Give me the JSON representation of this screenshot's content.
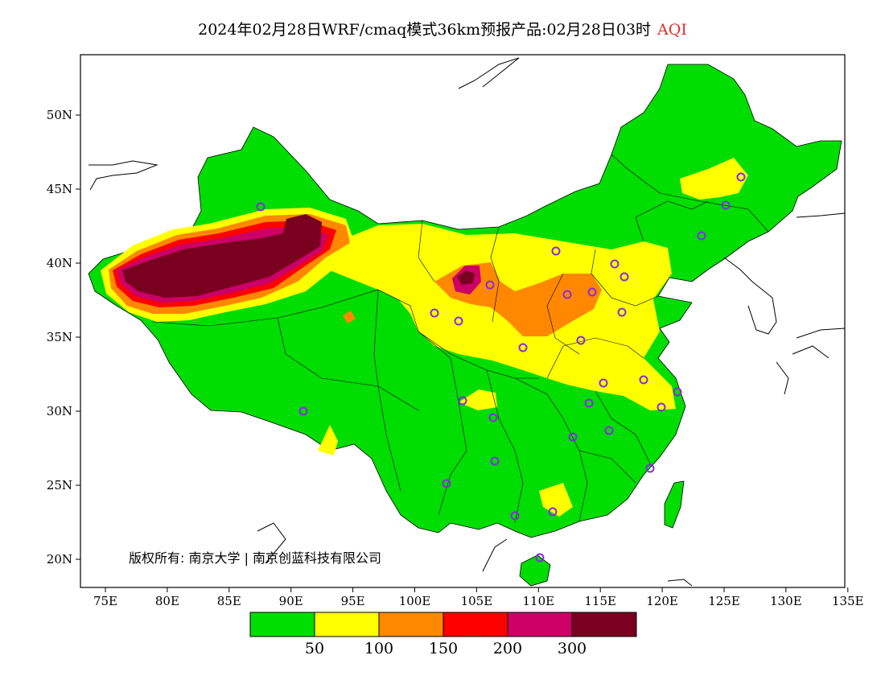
{
  "title": {
    "main": "2024年02月28日WRF/cmaq模式36km预报产品:02月28日03时",
    "variable": "AQI"
  },
  "axes": {
    "x_ticks": [
      "75E",
      "80E",
      "85E",
      "90E",
      "95E",
      "100E",
      "105E",
      "110E",
      "115E",
      "120E",
      "125E",
      "130E",
      "135E"
    ],
    "y_ticks": [
      "50N",
      "45N",
      "40N",
      "35N",
      "30N",
      "25N",
      "20N"
    ]
  },
  "copyright": "版权所有: 南京大学 | 南京创蓝科技有限公司",
  "legend": {
    "colors": [
      "#00dd00",
      "#ffff00",
      "#ff8800",
      "#ff0000",
      "#cc0066",
      "#7a0020"
    ],
    "labels": [
      "50",
      "100",
      "150",
      "200",
      "300"
    ]
  },
  "colors": {
    "ocean": "#ffffff",
    "good": "#00dd00",
    "moderate": "#ffff00",
    "usg": "#ff8800",
    "unhealthy": "#ff0000",
    "very_unhealthy": "#cc0066",
    "hazardous": "#7a0020",
    "station": "#8a2be2"
  }
}
